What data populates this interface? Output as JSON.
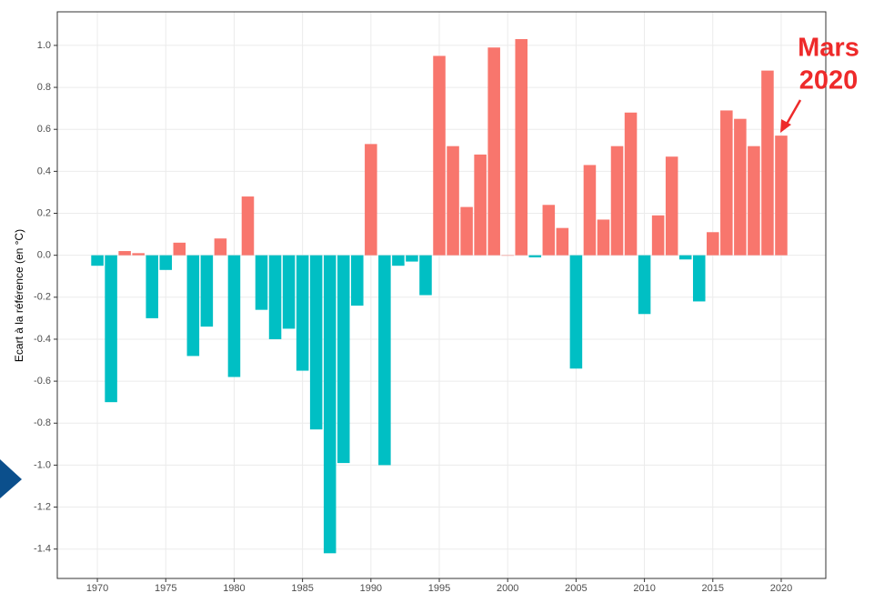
{
  "chart_data": {
    "type": "bar",
    "y_label": "Ecart à la référence (en °C)",
    "annotation": [
      "Mars",
      "2020"
    ],
    "x": [
      1970,
      1971,
      1972,
      1973,
      1974,
      1975,
      1976,
      1977,
      1978,
      1979,
      1980,
      1981,
      1982,
      1983,
      1984,
      1985,
      1986,
      1987,
      1988,
      1989,
      1990,
      1991,
      1992,
      1993,
      1994,
      1995,
      1996,
      1997,
      1998,
      1999,
      2000,
      2001,
      2002,
      2003,
      2004,
      2005,
      2006,
      2007,
      2008,
      2009,
      2010,
      2011,
      2012,
      2013,
      2014,
      2015,
      2016,
      2017,
      2018,
      2019,
      2020
    ],
    "values": [
      -0.05,
      -0.7,
      0.02,
      0.01,
      -0.3,
      -0.07,
      0.06,
      -0.48,
      -0.34,
      0.08,
      -0.58,
      0.28,
      -0.26,
      -0.4,
      -0.35,
      -0.55,
      -0.83,
      -1.42,
      -0.99,
      -0.24,
      0.53,
      -1.0,
      -0.05,
      -0.03,
      -0.19,
      0.95,
      0.52,
      0.23,
      0.48,
      0.99,
      0.0,
      1.03,
      -0.01,
      0.24,
      0.13,
      -0.54,
      0.43,
      0.17,
      0.52,
      0.68,
      -0.28,
      0.19,
      0.47,
      -0.02,
      -0.22,
      0.11,
      0.69,
      0.65,
      0.52,
      0.88,
      0.57
    ],
    "positive_color": "#f8766d",
    "negative_color": "#00bfc4",
    "annotation_color": "#ee2a2a",
    "xlim": [
      1967.07,
      2023.26
    ],
    "ylim": [
      -1.54,
      1.16
    ],
    "xticks": [
      1970,
      1975,
      1980,
      1985,
      1990,
      1995,
      2000,
      2005,
      2010,
      2015,
      2020
    ],
    "yticks": [
      -1.4,
      -1.2,
      {
        "value": -1.0,
        "label": "-1.0"
      },
      -0.8,
      -0.6,
      -0.4,
      -0.2,
      {
        "value": 0,
        "label": "0.0"
      },
      0.2,
      0.4,
      0.6,
      0.8,
      {
        "value": 1.0,
        "label": "1.0"
      }
    ],
    "grid": true
  }
}
